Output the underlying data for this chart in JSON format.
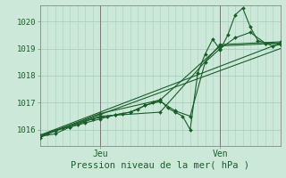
{
  "xlabel": "Pression niveau de la mer( hPa )",
  "bg_color": "#cce8d8",
  "grid_color": "#a8cfc0",
  "line_color": "#1a5e2a",
  "tick_label_color": "#1a5e2a",
  "label_color": "#1a5e2a",
  "ylim": [
    1015.4,
    1020.6
  ],
  "xlim": [
    0,
    96
  ],
  "yticks": [
    1016,
    1017,
    1018,
    1019,
    1020
  ],
  "xtick_positions": [
    24,
    72
  ],
  "xtick_labels": [
    "Jeu",
    "Ven"
  ],
  "series1": [
    [
      0,
      1015.7
    ],
    [
      3,
      1015.85
    ],
    [
      6,
      1015.95
    ],
    [
      9,
      1016.05
    ],
    [
      12,
      1016.1
    ],
    [
      15,
      1016.2
    ],
    [
      18,
      1016.3
    ],
    [
      21,
      1016.4
    ],
    [
      24,
      1016.45
    ],
    [
      27,
      1016.5
    ],
    [
      30,
      1016.55
    ],
    [
      33,
      1016.6
    ],
    [
      36,
      1016.65
    ],
    [
      39,
      1016.75
    ],
    [
      42,
      1016.9
    ],
    [
      45,
      1017.0
    ],
    [
      48,
      1017.1
    ],
    [
      51,
      1016.8
    ],
    [
      54,
      1016.65
    ],
    [
      57,
      1016.5
    ],
    [
      60,
      1016.0
    ],
    [
      63,
      1018.1
    ],
    [
      66,
      1018.8
    ],
    [
      69,
      1019.35
    ],
    [
      72,
      1018.95
    ],
    [
      75,
      1019.5
    ],
    [
      78,
      1020.25
    ],
    [
      81,
      1020.5
    ],
    [
      84,
      1019.8
    ],
    [
      87,
      1019.3
    ],
    [
      90,
      1019.2
    ],
    [
      93,
      1019.1
    ],
    [
      96,
      1019.15
    ]
  ],
  "series2": [
    [
      0,
      1015.75
    ],
    [
      6,
      1015.85
    ],
    [
      12,
      1016.1
    ],
    [
      18,
      1016.25
    ],
    [
      24,
      1016.4
    ],
    [
      30,
      1016.55
    ],
    [
      36,
      1016.65
    ],
    [
      42,
      1016.9
    ],
    [
      48,
      1017.05
    ],
    [
      54,
      1016.7
    ],
    [
      60,
      1016.5
    ],
    [
      66,
      1018.5
    ],
    [
      72,
      1019.0
    ],
    [
      78,
      1019.4
    ],
    [
      84,
      1019.6
    ],
    [
      90,
      1019.2
    ],
    [
      96,
      1019.2
    ]
  ],
  "series3_straight": [
    [
      0,
      1015.75
    ],
    [
      96,
      1019.0
    ]
  ],
  "series4_straight": [
    [
      0,
      1015.8
    ],
    [
      96,
      1019.2
    ]
  ],
  "series5": [
    [
      0,
      1015.75
    ],
    [
      24,
      1016.6
    ],
    [
      48,
      1017.1
    ],
    [
      72,
      1019.1
    ],
    [
      96,
      1019.2
    ]
  ],
  "series6": [
    [
      0,
      1015.8
    ],
    [
      24,
      1016.5
    ],
    [
      48,
      1016.65
    ],
    [
      72,
      1019.15
    ],
    [
      96,
      1019.25
    ]
  ]
}
